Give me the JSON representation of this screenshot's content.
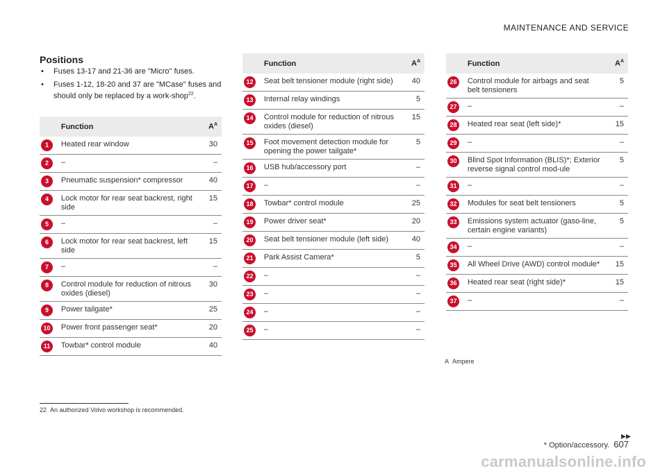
{
  "header": {
    "section": "MAINTENANCE AND SERVICE"
  },
  "positions": {
    "title": "Positions",
    "bullet1": "Fuses 13-17 and 21-36 are \"Micro\" fuses.",
    "bullet2": "Fuses 1-12, 18-20 and 37 are \"MCase\" fuses and should only be replaced by a work-shop",
    "bullet2_ref": "22",
    "bullet2_end": "."
  },
  "table_headers": {
    "function": "Function",
    "amp": "A",
    "amp_sup": "A"
  },
  "colors": {
    "badge": "#c8102e",
    "header_bg": "#ebebeb"
  },
  "tables": [
    {
      "rows": [
        {
          "n": "1",
          "f": "Heated rear window",
          "a": "30"
        },
        {
          "n": "2",
          "f": "–",
          "a": "–"
        },
        {
          "n": "3",
          "f": "Pneumatic suspension* compressor",
          "a": "40"
        },
        {
          "n": "4",
          "f": "Lock motor for rear seat backrest, right side",
          "a": "15"
        },
        {
          "n": "5",
          "f": "–",
          "a": "–"
        },
        {
          "n": "6",
          "f": "Lock motor for rear seat backrest, left side",
          "a": "15"
        },
        {
          "n": "7",
          "f": "–",
          "a": "–"
        },
        {
          "n": "8",
          "f": "Control module for reduction of nitrous oxides (diesel)",
          "a": "30"
        },
        {
          "n": "9",
          "f": "Power tailgate*",
          "a": "25"
        },
        {
          "n": "10",
          "f": "Power front passenger seat*",
          "a": "20"
        },
        {
          "n": "11",
          "f": "Towbar* control module",
          "a": "40"
        }
      ]
    },
    {
      "rows": [
        {
          "n": "12",
          "f": "Seat belt tensioner module (right side)",
          "a": "40"
        },
        {
          "n": "13",
          "f": "Internal relay windings",
          "a": "5"
        },
        {
          "n": "14",
          "f": "Control module for reduction of nitrous oxides (diesel)",
          "a": "15"
        },
        {
          "n": "15",
          "f": "Foot movement detection module for opening the power tailgate*",
          "a": "5"
        },
        {
          "n": "16",
          "f": "USB hub/accessory port",
          "a": "–"
        },
        {
          "n": "17",
          "f": "–",
          "a": "–"
        },
        {
          "n": "18",
          "f": "Towbar* control module",
          "a": "25"
        },
        {
          "n": "19",
          "f": "Power driver seat*",
          "a": "20"
        },
        {
          "n": "20",
          "f": "Seat belt tensioner module (left side)",
          "a": "40"
        },
        {
          "n": "21",
          "f": "Park Assist Camera*",
          "a": "5"
        },
        {
          "n": "22",
          "f": "–",
          "a": "–"
        },
        {
          "n": "23",
          "f": "–",
          "a": "–"
        },
        {
          "n": "24",
          "f": "–",
          "a": "–"
        },
        {
          "n": "25",
          "f": "–",
          "a": "–"
        }
      ]
    },
    {
      "rows": [
        {
          "n": "26",
          "f": "Control module for airbags and seat belt tensioners",
          "a": "5"
        },
        {
          "n": "27",
          "f": "–",
          "a": "–"
        },
        {
          "n": "28",
          "f": "Heated rear seat (left side)*",
          "a": "15"
        },
        {
          "n": "29",
          "f": "–",
          "a": "–"
        },
        {
          "n": "30",
          "f": "Blind Spot Information (BLIS)*; Exterior reverse signal control mod-ule",
          "a": "5"
        },
        {
          "n": "31",
          "f": "–",
          "a": "–"
        },
        {
          "n": "32",
          "f": "Modules for seat belt tensioners",
          "a": "5"
        },
        {
          "n": "33",
          "f": "Emissions system actuator (gaso-line, certain engine variants)",
          "a": "5"
        },
        {
          "n": "34",
          "f": "–",
          "a": "–"
        },
        {
          "n": "35",
          "f": "All Wheel Drive (AWD) control module*",
          "a": "15"
        },
        {
          "n": "36",
          "f": "Heated rear seat (right side)*",
          "a": "15"
        },
        {
          "n": "37",
          "f": "–",
          "a": "–"
        }
      ]
    }
  ],
  "footnote_a": {
    "marker": "A",
    "text": "Ampere"
  },
  "footnote22": {
    "marker": "22",
    "text": "An authorized Volvo workshop is recommended."
  },
  "footer": {
    "next_icon": "double-chevron-right-icon",
    "next_symbol": "▸▸",
    "note": "* Option/accessory.",
    "page": "607"
  },
  "watermark": "carmanualsonline.info"
}
